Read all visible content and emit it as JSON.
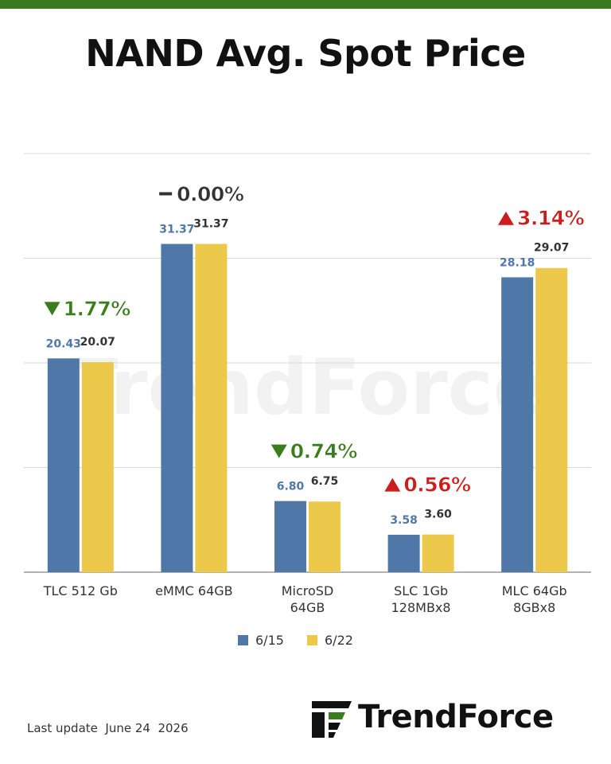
{
  "title": "NAND Avg. Spot Price",
  "footer": {
    "last_update": "Last update  June 24  2026"
  },
  "logo": {
    "text": "TrendForce",
    "watermark_text": "TrendForce",
    "icon": "trendforce-logo-icon"
  },
  "colors": {
    "series_6_15": "#4f78a8",
    "series_6_22": "#ecc94b",
    "up": "#cc1c1c",
    "down": "#3a7d1c",
    "flat": "#333333",
    "topbar": "#3c7a1f"
  },
  "chart_data": {
    "type": "bar",
    "categories": [
      [
        "TLC 512 Gb"
      ],
      [
        "eMMC 64GB"
      ],
      [
        "MicroSD",
        "64GB"
      ],
      [
        "SLC 1Gb",
        "128MBx8"
      ],
      [
        "MLC 64Gb",
        "8GBx8"
      ]
    ],
    "series": [
      {
        "name": "6/15",
        "values": [
          20.43,
          31.37,
          6.8,
          3.58,
          28.18
        ],
        "labels": [
          "20.43",
          "31.37",
          "6.80",
          "3.58",
          "28.18"
        ]
      },
      {
        "name": "6/22",
        "values": [
          20.07,
          31.37,
          6.75,
          3.6,
          29.07
        ],
        "labels": [
          "20.07",
          "31.37",
          "6.75",
          "3.60",
          "29.07"
        ]
      }
    ],
    "changes": [
      {
        "direction": "down",
        "text": "1.77%"
      },
      {
        "direction": "flat",
        "text": "0.00%"
      },
      {
        "direction": "down",
        "text": "0.74%"
      },
      {
        "direction": "up",
        "text": "0.56%"
      },
      {
        "direction": "up",
        "text": "3.14%"
      }
    ],
    "ylim": [
      0,
      40
    ],
    "gridlines": [
      0,
      10,
      20,
      30,
      40
    ],
    "grid": true,
    "legend": "bottom-center",
    "title": "NAND Avg. Spot Price"
  }
}
